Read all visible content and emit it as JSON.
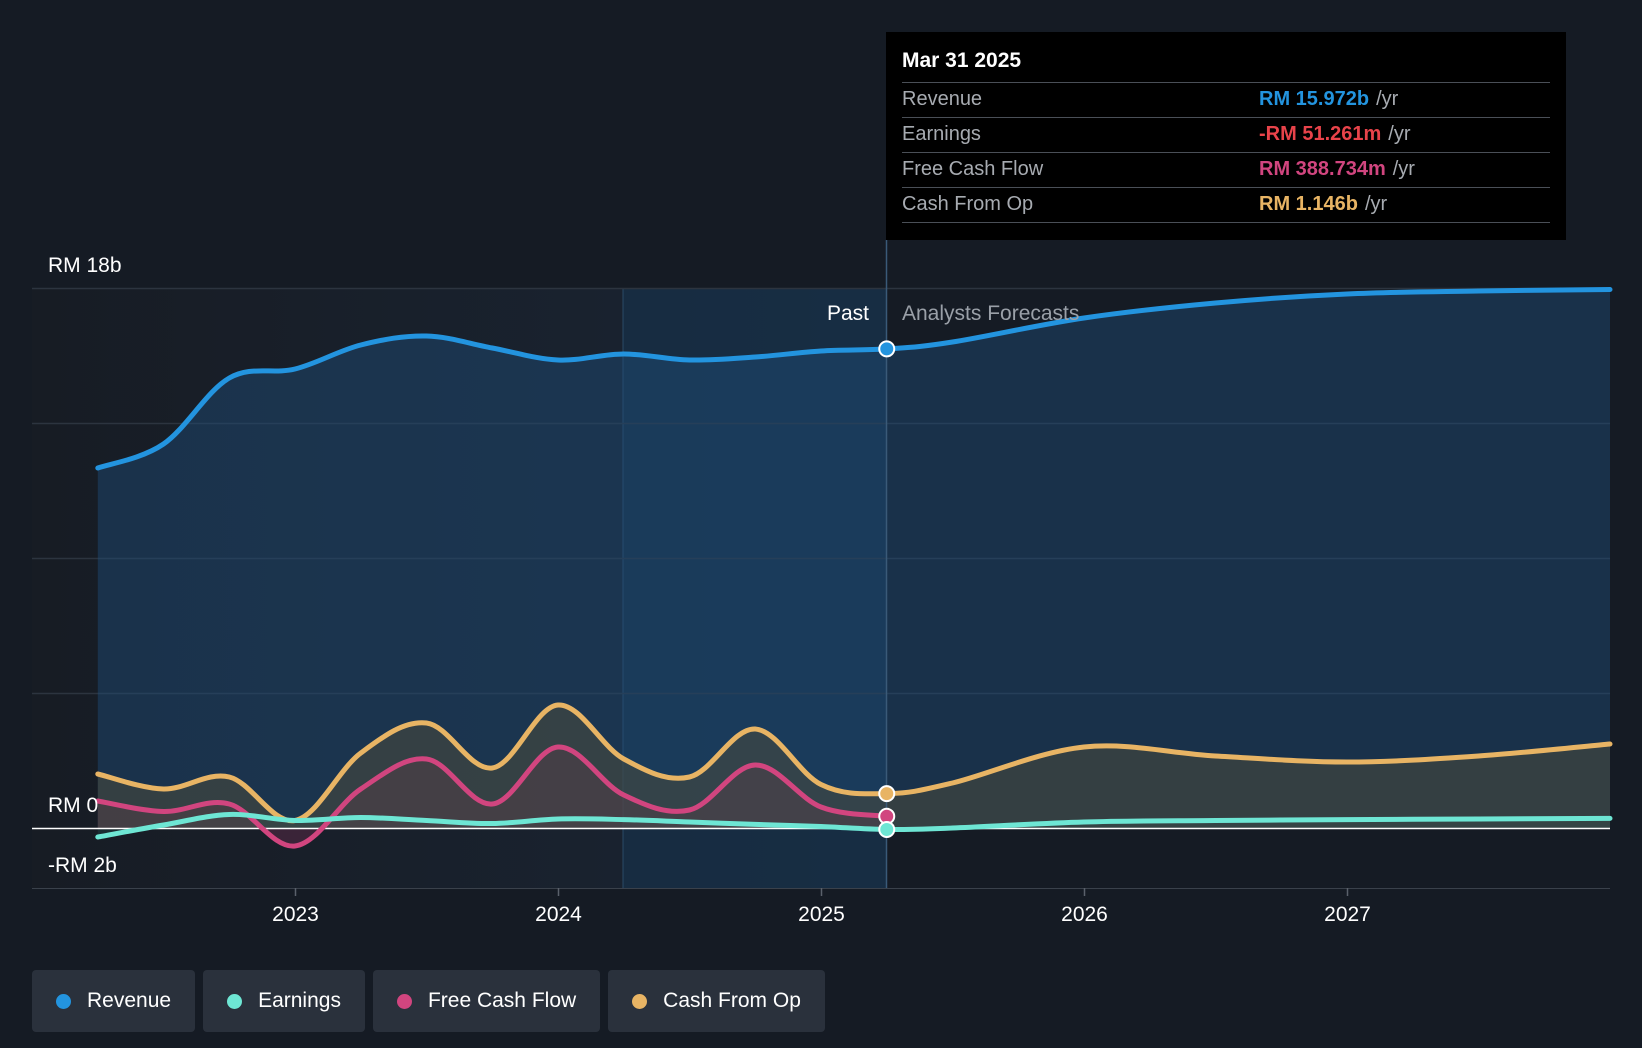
{
  "chart_data": {
    "type": "line",
    "x_unit": "year",
    "y_unit": "RM billions",
    "ylim": [
      -2,
      18
    ],
    "y_tick_labels": [
      {
        "value": 18,
        "label": "RM 18b"
      },
      {
        "value": 0,
        "label": "RM 0"
      },
      {
        "value": -2,
        "label": "-RM 2b"
      }
    ],
    "x_range": [
      2022.0,
      2028.0
    ],
    "x_ticks": [
      2023,
      2024,
      2025,
      2026,
      2027
    ],
    "x_tick_labels": [
      "2023",
      "2024",
      "2025",
      "2026",
      "2027"
    ],
    "past_label": "Past",
    "forecast_label": "Analysts Forecasts",
    "cursor_x": 2025.25,
    "series": [
      {
        "name": "Revenue",
        "color": "#2394df",
        "points": [
          [
            2022.25,
            12.0
          ],
          [
            2022.5,
            12.8
          ],
          [
            2022.75,
            15.0
          ],
          [
            2023.0,
            15.3
          ],
          [
            2023.25,
            16.1
          ],
          [
            2023.5,
            16.4
          ],
          [
            2023.75,
            16.0
          ],
          [
            2024.0,
            15.6
          ],
          [
            2024.25,
            15.8
          ],
          [
            2024.5,
            15.6
          ],
          [
            2024.75,
            15.7
          ],
          [
            2025.0,
            15.9
          ],
          [
            2025.25,
            15.97
          ],
          [
            2025.5,
            16.2
          ],
          [
            2026.0,
            17.0
          ],
          [
            2026.5,
            17.5
          ],
          [
            2027.0,
            17.8
          ],
          [
            2027.5,
            17.9
          ],
          [
            2028.0,
            17.95
          ]
        ]
      },
      {
        "name": "Earnings",
        "color": "#6ee6d4",
        "points": [
          [
            2022.25,
            -0.3
          ],
          [
            2022.5,
            0.1
          ],
          [
            2022.75,
            0.45
          ],
          [
            2023.0,
            0.25
          ],
          [
            2023.25,
            0.35
          ],
          [
            2023.5,
            0.25
          ],
          [
            2023.75,
            0.15
          ],
          [
            2024.0,
            0.3
          ],
          [
            2024.25,
            0.28
          ],
          [
            2024.5,
            0.2
          ],
          [
            2024.75,
            0.12
          ],
          [
            2025.0,
            0.05
          ],
          [
            2025.25,
            -0.05
          ],
          [
            2025.5,
            0.0
          ],
          [
            2026.0,
            0.2
          ],
          [
            2026.5,
            0.25
          ],
          [
            2027.0,
            0.28
          ],
          [
            2027.5,
            0.3
          ],
          [
            2028.0,
            0.32
          ]
        ]
      },
      {
        "name": "Free Cash Flow",
        "color": "#d1457f",
        "points": [
          [
            2022.25,
            0.9
          ],
          [
            2022.5,
            0.55
          ],
          [
            2022.75,
            0.8
          ],
          [
            2023.0,
            -0.6
          ],
          [
            2023.25,
            1.3
          ],
          [
            2023.5,
            2.3
          ],
          [
            2023.75,
            0.8
          ],
          [
            2024.0,
            2.7
          ],
          [
            2024.25,
            1.1
          ],
          [
            2024.5,
            0.6
          ],
          [
            2024.75,
            2.1
          ],
          [
            2025.0,
            0.7
          ],
          [
            2025.25,
            0.39
          ]
        ]
      },
      {
        "name": "Cash From Op",
        "color": "#e8b464",
        "points": [
          [
            2022.25,
            1.8
          ],
          [
            2022.5,
            1.3
          ],
          [
            2022.75,
            1.7
          ],
          [
            2023.0,
            0.25
          ],
          [
            2023.25,
            2.5
          ],
          [
            2023.5,
            3.5
          ],
          [
            2023.75,
            2.0
          ],
          [
            2024.0,
            4.1
          ],
          [
            2024.25,
            2.3
          ],
          [
            2024.5,
            1.7
          ],
          [
            2024.75,
            3.3
          ],
          [
            2025.0,
            1.45
          ],
          [
            2025.25,
            1.146
          ],
          [
            2025.5,
            1.5
          ],
          [
            2026.0,
            2.7
          ],
          [
            2026.5,
            2.4
          ],
          [
            2027.0,
            2.2
          ],
          [
            2027.5,
            2.4
          ],
          [
            2028.0,
            2.8
          ]
        ]
      }
    ]
  },
  "tooltip": {
    "date": "Mar 31 2025",
    "rows": [
      {
        "label": "Revenue",
        "value": "RM 15.972b",
        "unit": "/yr",
        "color": "#2394df"
      },
      {
        "label": "Earnings",
        "value": "-RM 51.261m",
        "unit": "/yr",
        "color": "#e8434a"
      },
      {
        "label": "Free Cash Flow",
        "value": "RM 388.734m",
        "unit": "/yr",
        "color": "#d1457f"
      },
      {
        "label": "Cash From Op",
        "value": "RM 1.146b",
        "unit": "/yr",
        "color": "#e8b464"
      }
    ]
  },
  "legend": [
    {
      "label": "Revenue",
      "color": "#2394df"
    },
    {
      "label": "Earnings",
      "color": "#6ee6d4"
    },
    {
      "label": "Free Cash Flow",
      "color": "#d1457f"
    },
    {
      "label": "Cash From Op",
      "color": "#e8b464"
    }
  ]
}
